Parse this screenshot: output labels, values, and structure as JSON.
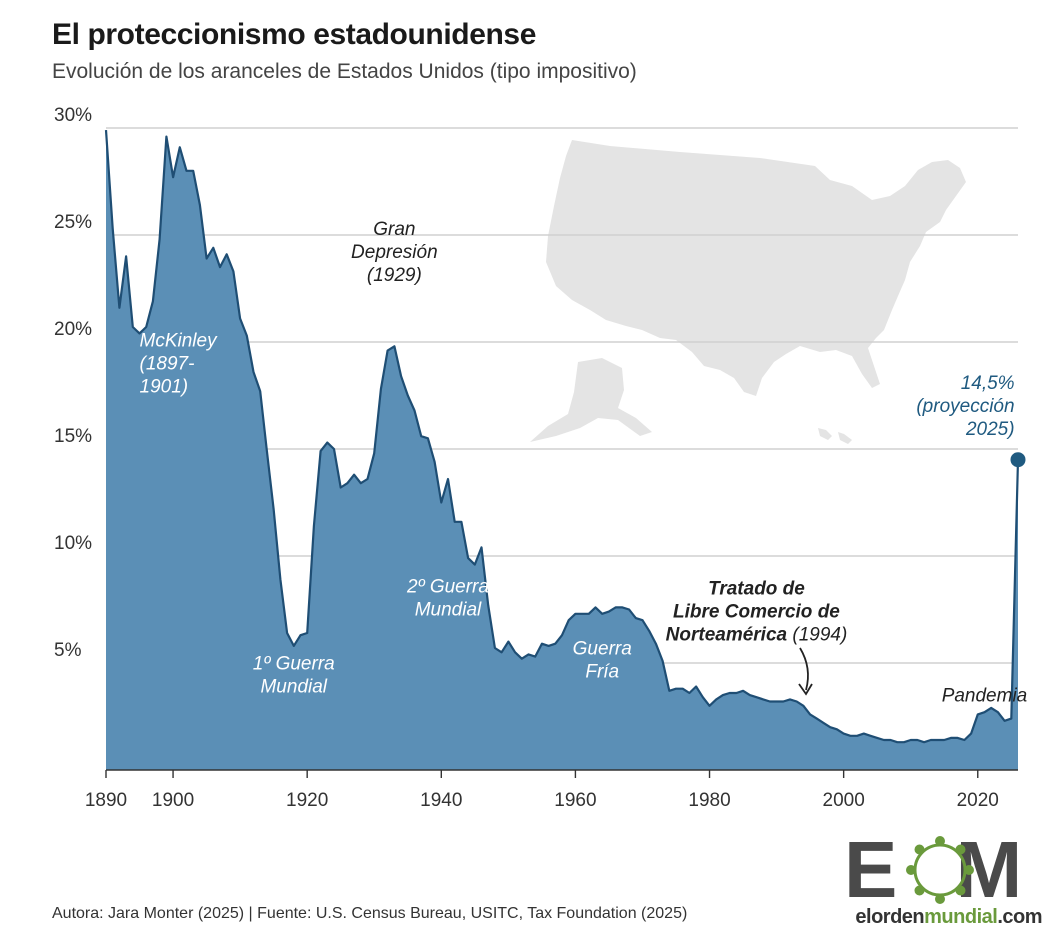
{
  "header": {
    "title": "El proteccionismo estadounidense",
    "subtitle": "Evolución de los aranceles de Estados Unidos (tipo impositivo)"
  },
  "footer": {
    "source": "Autora: Jara Monter (2025) | Fuente: U.S. Census Bureau, USITC, Tax Foundation (2025)"
  },
  "logo": {
    "letters": "EOM",
    "site_a": "elorden",
    "site_b": "mundial",
    "site_c": ".com"
  },
  "colors": {
    "area_fill": "#5b8fb6",
    "area_stroke": "#1f4e74",
    "grid": "#d0d0d0",
    "map": "#e4e4e4",
    "highlight": "#1f5a80",
    "logo_gray": "#4a4a4a",
    "logo_green": "#6a9a3c"
  },
  "decor": {
    "map_icon": "usa-map-silhouette"
  },
  "chart_data": {
    "type": "area",
    "title": "El proteccionismo estadounidense",
    "subtitle": "Evolución de los aranceles de Estados Unidos (tipo impositivo)",
    "xlabel": "",
    "ylabel": "",
    "xlim": [
      1890,
      2026
    ],
    "ylim": [
      0,
      30
    ],
    "x_ticks": [
      1890,
      1900,
      1920,
      1940,
      1960,
      1980,
      2000,
      2020
    ],
    "y_ticks": [
      {
        "value": 30,
        "label": "30%"
      },
      {
        "value": 25,
        "label": "25%"
      },
      {
        "value": 20,
        "label": "20%"
      },
      {
        "value": 15,
        "label": "15%"
      },
      {
        "value": 10,
        "label": "10%"
      },
      {
        "value": 5,
        "label": "5%"
      }
    ],
    "grid": true,
    "series": [
      {
        "values": [
          [
            1890,
            29.9
          ],
          [
            1891,
            25.3
          ],
          [
            1892,
            21.6
          ],
          [
            1893,
            24.0
          ],
          [
            1894,
            20.7
          ],
          [
            1895,
            20.4
          ],
          [
            1896,
            20.7
          ],
          [
            1897,
            21.9
          ],
          [
            1898,
            24.8
          ],
          [
            1899,
            29.6
          ],
          [
            1900,
            27.7
          ],
          [
            1901,
            29.1
          ],
          [
            1902,
            28.0
          ],
          [
            1903,
            28.0
          ],
          [
            1904,
            26.4
          ],
          [
            1905,
            23.9
          ],
          [
            1906,
            24.4
          ],
          [
            1907,
            23.5
          ],
          [
            1908,
            24.1
          ],
          [
            1909,
            23.3
          ],
          [
            1910,
            21.1
          ],
          [
            1911,
            20.3
          ],
          [
            1912,
            18.6
          ],
          [
            1913,
            17.7
          ],
          [
            1914,
            14.9
          ],
          [
            1915,
            12.2
          ],
          [
            1916,
            8.9
          ],
          [
            1917,
            6.4
          ],
          [
            1918,
            5.8
          ],
          [
            1919,
            6.3
          ],
          [
            1920,
            6.4
          ],
          [
            1921,
            11.4
          ],
          [
            1922,
            14.9
          ],
          [
            1923,
            15.3
          ],
          [
            1924,
            15.0
          ],
          [
            1925,
            13.2
          ],
          [
            1926,
            13.4
          ],
          [
            1927,
            13.8
          ],
          [
            1928,
            13.4
          ],
          [
            1929,
            13.6
          ],
          [
            1930,
            14.8
          ],
          [
            1931,
            17.8
          ],
          [
            1932,
            19.6
          ],
          [
            1933,
            19.8
          ],
          [
            1934,
            18.4
          ],
          [
            1935,
            17.5
          ],
          [
            1936,
            16.8
          ],
          [
            1937,
            15.6
          ],
          [
            1938,
            15.5
          ],
          [
            1939,
            14.4
          ],
          [
            1940,
            12.5
          ],
          [
            1941,
            13.6
          ],
          [
            1942,
            11.6
          ],
          [
            1943,
            11.6
          ],
          [
            1944,
            9.9
          ],
          [
            1945,
            9.6
          ],
          [
            1946,
            10.4
          ],
          [
            1947,
            7.7
          ],
          [
            1948,
            5.7
          ],
          [
            1949,
            5.5
          ],
          [
            1950,
            6.0
          ],
          [
            1951,
            5.5
          ],
          [
            1952,
            5.2
          ],
          [
            1953,
            5.4
          ],
          [
            1954,
            5.3
          ],
          [
            1955,
            5.9
          ],
          [
            1956,
            5.8
          ],
          [
            1957,
            5.9
          ],
          [
            1958,
            6.3
          ],
          [
            1959,
            7.0
          ],
          [
            1960,
            7.3
          ],
          [
            1961,
            7.3
          ],
          [
            1962,
            7.3
          ],
          [
            1963,
            7.6
          ],
          [
            1964,
            7.3
          ],
          [
            1965,
            7.4
          ],
          [
            1966,
            7.6
          ],
          [
            1967,
            7.6
          ],
          [
            1968,
            7.5
          ],
          [
            1969,
            7.1
          ],
          [
            1970,
            7.0
          ],
          [
            1971,
            6.5
          ],
          [
            1972,
            5.9
          ],
          [
            1973,
            5.1
          ],
          [
            1974,
            3.7
          ],
          [
            1975,
            3.8
          ],
          [
            1976,
            3.8
          ],
          [
            1977,
            3.6
          ],
          [
            1978,
            3.9
          ],
          [
            1979,
            3.4
          ],
          [
            1980,
            3.0
          ],
          [
            1981,
            3.3
          ],
          [
            1982,
            3.5
          ],
          [
            1983,
            3.6
          ],
          [
            1984,
            3.6
          ],
          [
            1985,
            3.7
          ],
          [
            1986,
            3.5
          ],
          [
            1987,
            3.4
          ],
          [
            1988,
            3.3
          ],
          [
            1989,
            3.2
          ],
          [
            1990,
            3.2
          ],
          [
            1991,
            3.2
          ],
          [
            1992,
            3.3
          ],
          [
            1993,
            3.2
          ],
          [
            1994,
            3.0
          ],
          [
            1995,
            2.6
          ],
          [
            1996,
            2.4
          ],
          [
            1997,
            2.2
          ],
          [
            1998,
            2.0
          ],
          [
            1999,
            1.9
          ],
          [
            2000,
            1.7
          ],
          [
            2001,
            1.6
          ],
          [
            2002,
            1.6
          ],
          [
            2003,
            1.7
          ],
          [
            2004,
            1.6
          ],
          [
            2005,
            1.5
          ],
          [
            2006,
            1.4
          ],
          [
            2007,
            1.4
          ],
          [
            2008,
            1.3
          ],
          [
            2009,
            1.3
          ],
          [
            2010,
            1.4
          ],
          [
            2011,
            1.4
          ],
          [
            2012,
            1.3
          ],
          [
            2013,
            1.4
          ],
          [
            2014,
            1.4
          ],
          [
            2015,
            1.4
          ],
          [
            2016,
            1.5
          ],
          [
            2017,
            1.5
          ],
          [
            2018,
            1.4
          ],
          [
            2019,
            1.7
          ],
          [
            2020,
            2.6
          ],
          [
            2021,
            2.7
          ],
          [
            2022,
            2.9
          ],
          [
            2023,
            2.7
          ],
          [
            2024,
            2.3
          ],
          [
            2025,
            2.4
          ],
          [
            2026,
            14.5
          ]
        ]
      }
    ],
    "highlight_point": {
      "x": 2026,
      "y": 14.5
    },
    "annotations": [
      {
        "id": "mckinley",
        "lines": [
          "McKinley",
          "(1897-",
          "1901)"
        ],
        "x": 1895,
        "y": 19.8
      },
      {
        "id": "gran-depresion",
        "lines": [
          "Gran",
          "Depresión",
          "(1929)"
        ],
        "x": 1933,
        "y": 25.0
      },
      {
        "id": "guerra-mundial-1",
        "lines": [
          "1º Guerra",
          "Mundial"
        ],
        "x": 1918,
        "y": 4.7
      },
      {
        "id": "guerra-mundial-2",
        "lines": [
          "2º Guerra",
          "Mundial"
        ],
        "x": 1941,
        "y": 8.3
      },
      {
        "id": "guerra-fria",
        "lines": [
          "Guerra",
          "Fría"
        ],
        "x": 1964,
        "y": 5.4
      },
      {
        "id": "tlcan",
        "lines": [
          "Tratado de",
          "Libre Comercio de",
          "Norteamérica",
          " (1994)"
        ],
        "x": 1987,
        "y": 8.2
      },
      {
        "id": "pandemia",
        "lines": [
          "Pandemia"
        ],
        "x": 2021,
        "y": 3.2
      },
      {
        "id": "proyeccion",
        "lines": [
          "14,5%",
          "(proyección",
          "2025)"
        ],
        "x": 2024,
        "y": 17.8
      }
    ]
  }
}
